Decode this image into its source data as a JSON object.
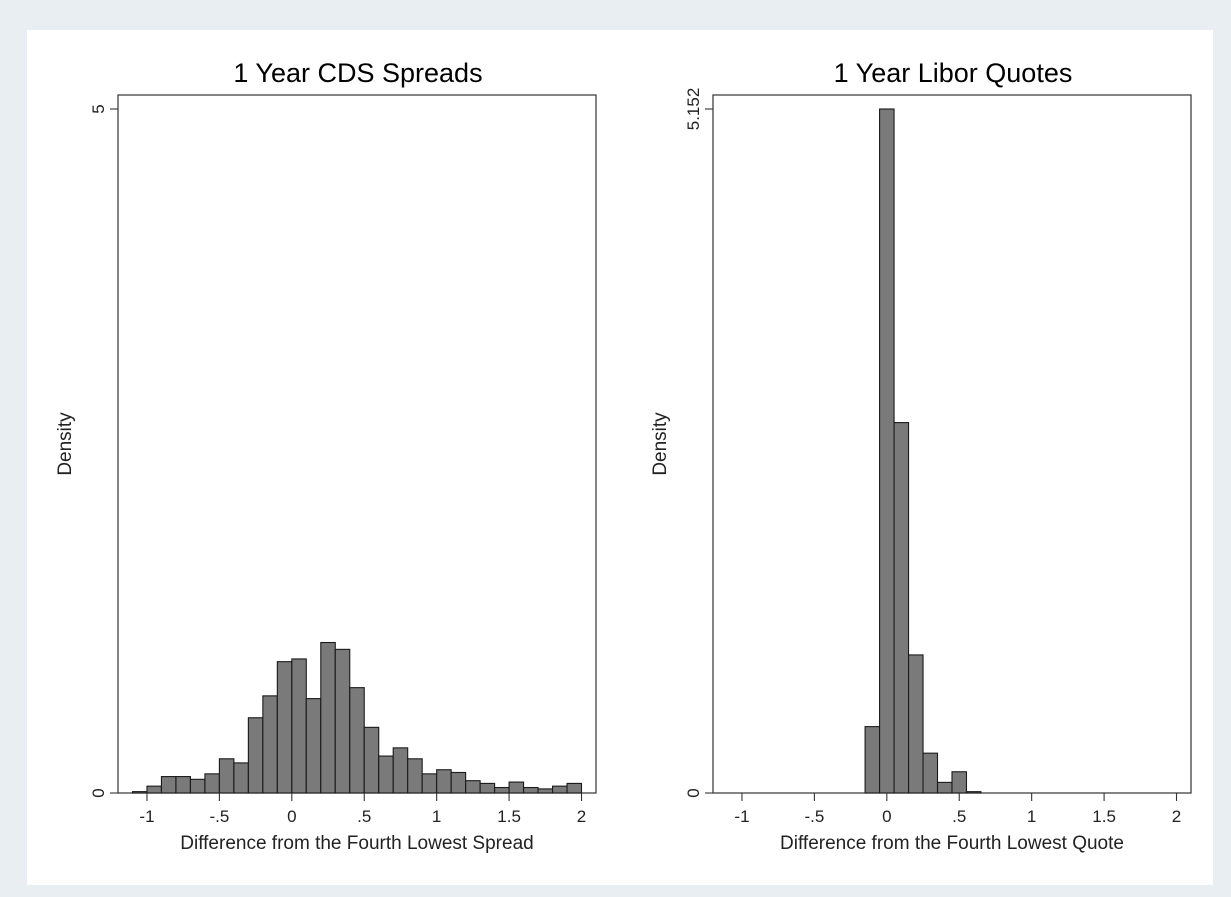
{
  "colors": {
    "background": "#e8eef2",
    "panel": "#ffffff",
    "bar_fill": "#7a7a7a",
    "bar_edge": "#1a1a1a"
  },
  "chart_data": [
    {
      "type": "bar",
      "title": "1 Year CDS Spreads",
      "xlabel": "Difference from the Fourth Lowest Spread",
      "ylabel": "Density",
      "xlim": [
        -1.2,
        2.1
      ],
      "ylim": [
        0,
        5
      ],
      "xticks": [
        -1,
        -0.5,
        0,
        0.5,
        1,
        1.5,
        2
      ],
      "xtick_labels": [
        "-1",
        "-.5",
        "0",
        ".5",
        "1",
        "1.5",
        "2"
      ],
      "yticks": [
        0,
        5
      ],
      "ytick_labels": [
        "0",
        "5"
      ],
      "bin_width": 0.1,
      "bin_starts": [
        -1.1,
        -1.0,
        -0.9,
        -0.8,
        -0.7,
        -0.6,
        -0.5,
        -0.4,
        -0.3,
        -0.2,
        -0.1,
        0.0,
        0.1,
        0.2,
        0.3,
        0.4,
        0.5,
        0.6,
        0.7,
        0.8,
        0.9,
        1.0,
        1.1,
        1.2,
        1.3,
        1.4,
        1.5,
        1.6,
        1.7,
        1.8,
        1.9
      ],
      "values": [
        0.01,
        0.05,
        0.12,
        0.12,
        0.1,
        0.14,
        0.25,
        0.22,
        0.55,
        0.71,
        0.96,
        0.98,
        0.69,
        1.1,
        1.05,
        0.77,
        0.48,
        0.27,
        0.33,
        0.25,
        0.14,
        0.17,
        0.15,
        0.09,
        0.07,
        0.04,
        0.08,
        0.04,
        0.03,
        0.05,
        0.07
      ]
    },
    {
      "type": "bar",
      "title": "1 Year Libor Quotes",
      "xlabel": "Difference from the Fourth Lowest Quote",
      "ylabel": "Density",
      "xlim": [
        -1.2,
        2.1
      ],
      "ylim": [
        0,
        5.152
      ],
      "xticks": [
        -1,
        -0.5,
        0,
        0.5,
        1,
        1.5,
        2
      ],
      "xtick_labels": [
        "-1",
        "-.5",
        "0",
        ".5",
        "1",
        "1.5",
        "2"
      ],
      "yticks": [
        0,
        5.152
      ],
      "ytick_labels": [
        "0",
        "5.152"
      ],
      "bin_width": 0.1,
      "bin_starts": [
        -0.15,
        -0.05,
        0.05,
        0.15,
        0.25,
        0.35,
        0.45,
        0.55
      ],
      "values": [
        0.5,
        5.152,
        2.79,
        1.04,
        0.3,
        0.08,
        0.16,
        0.01
      ]
    }
  ]
}
